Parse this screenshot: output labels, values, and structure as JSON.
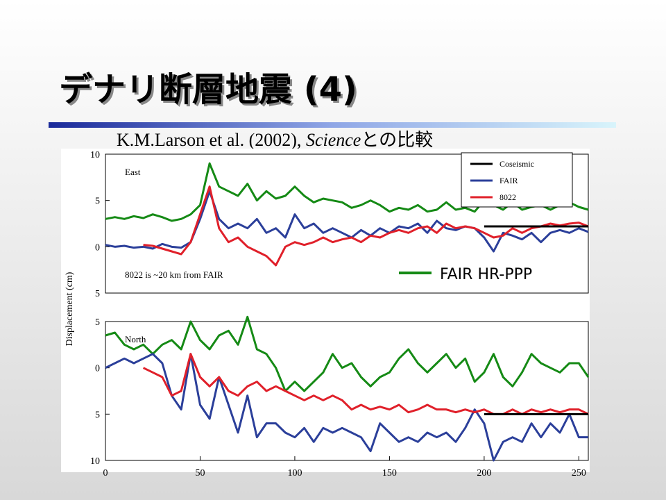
{
  "slide": {
    "title": "デナリ断層地震 (4)",
    "subtitle": [
      "K.M.Larson et al. (2002), ",
      "Science",
      "との比較"
    ],
    "ylabel": "Displacement (cm)"
  },
  "chart_data": [
    {
      "type": "line",
      "label": "East",
      "annotation": "8022 is ~20 km from FAIR",
      "x": [
        0,
        5,
        10,
        15,
        20,
        25,
        30,
        35,
        40,
        45,
        50,
        55,
        60,
        65,
        70,
        75,
        80,
        85,
        90,
        95,
        100,
        105,
        110,
        115,
        120,
        125,
        130,
        135,
        140,
        145,
        150,
        155,
        160,
        165,
        170,
        175,
        180,
        185,
        190,
        195,
        200,
        205,
        210,
        215,
        220,
        225,
        230,
        235,
        240,
        245,
        250,
        255
      ],
      "xlim": [
        0,
        255
      ],
      "ylim": [
        -5,
        10
      ],
      "yticks": [
        10,
        5,
        0,
        {
          "value": -5,
          "label": "5"
        }
      ],
      "series": [
        {
          "name": "FAIR HR-PPP",
          "color": "#158a15",
          "values": [
            3,
            3.2,
            3,
            3.3,
            3.1,
            3.5,
            3.2,
            2.8,
            3,
            3.5,
            4.5,
            9,
            6.5,
            6,
            5.5,
            6.8,
            5,
            6,
            5.2,
            5.5,
            6.5,
            5.5,
            4.8,
            5.2,
            5,
            4.8,
            4.2,
            4.5,
            5,
            4.5,
            3.8,
            4.2,
            4,
            4.5,
            3.8,
            4,
            4.8,
            4,
            4.2,
            3.8,
            5,
            4.5,
            4,
            4.8,
            4,
            4.3,
            4.5,
            4,
            4.5,
            4.8,
            4.3,
            4
          ]
        },
        {
          "name": "FAIR",
          "color": "#2b3f9a",
          "values": [
            0.2,
            0,
            0.1,
            -0.1,
            0,
            -0.2,
            0.3,
            0,
            -0.1,
            0.5,
            3,
            6,
            3,
            2,
            2.5,
            2,
            3,
            1.5,
            2,
            1,
            3.5,
            2,
            2.5,
            1.5,
            2,
            1.5,
            1,
            1.8,
            1.2,
            2,
            1.5,
            2.2,
            2,
            2.5,
            1.5,
            2.8,
            2,
            1.8,
            2.2,
            2,
            1,
            -0.5,
            1.5,
            1.2,
            0.8,
            1.5,
            0.5,
            1.5,
            1.8,
            1.5,
            2,
            1.6
          ]
        },
        {
          "name": "8022",
          "color": "#e0202a",
          "values": [
            null,
            null,
            null,
            null,
            0.2,
            0.1,
            -0.2,
            -0.5,
            -0.8,
            0.5,
            3.5,
            6.5,
            2,
            0.5,
            1,
            0,
            -0.5,
            -1,
            -2,
            0,
            0.5,
            0.2,
            0.5,
            1,
            0.5,
            0.8,
            1,
            0.5,
            1.2,
            1,
            1.5,
            1.8,
            1.5,
            2,
            2.2,
            1.5,
            2.5,
            2,
            2.2,
            2,
            1.5,
            1,
            1.2,
            2,
            1.5,
            2,
            2.2,
            2.5,
            2.3,
            2.5,
            2.6,
            2.2
          ]
        },
        {
          "name": "Coseismic",
          "color": "#000000",
          "values": [
            null,
            null,
            null,
            null,
            null,
            null,
            null,
            null,
            null,
            null,
            null,
            null,
            null,
            null,
            null,
            null,
            null,
            null,
            null,
            null,
            null,
            null,
            null,
            null,
            null,
            null,
            null,
            null,
            null,
            null,
            null,
            null,
            null,
            null,
            null,
            null,
            null,
            null,
            null,
            null,
            2.2,
            2.2,
            2.2,
            2.2,
            2.2,
            2.2,
            2.2,
            2.2,
            2.2,
            2.2,
            2.2,
            2.2
          ]
        }
      ]
    },
    {
      "type": "line",
      "label": "North",
      "x": [
        0,
        5,
        10,
        15,
        20,
        25,
        30,
        35,
        40,
        45,
        50,
        55,
        60,
        65,
        70,
        75,
        80,
        85,
        90,
        95,
        100,
        105,
        110,
        115,
        120,
        125,
        130,
        135,
        140,
        145,
        150,
        155,
        160,
        165,
        170,
        175,
        180,
        185,
        190,
        195,
        200,
        205,
        210,
        215,
        220,
        225,
        230,
        235,
        240,
        245,
        250,
        255
      ],
      "xlim": [
        0,
        255
      ],
      "ylim": [
        -10,
        5
      ],
      "xticks": [
        0,
        50,
        100,
        150,
        200,
        250
      ],
      "yticks": [
        5,
        0,
        {
          "value": -5,
          "label": "5"
        },
        {
          "value": -10,
          "label": "10"
        }
      ],
      "series": [
        {
          "color": "#158a15",
          "values": [
            3.5,
            3.8,
            2.5,
            2,
            2.5,
            1.5,
            2.5,
            3,
            2,
            5,
            3,
            2,
            3.5,
            4,
            2.5,
            5.5,
            2,
            1.5,
            0,
            -2.5,
            -1.5,
            -2.5,
            -1.5,
            -0.5,
            1.5,
            0,
            0.5,
            -1,
            -2,
            -1,
            -0.5,
            1,
            2,
            0.5,
            -0.5,
            0.5,
            1.5,
            0,
            1,
            -1.5,
            -0.5,
            1.5,
            -1,
            -2,
            -0.5,
            1.5,
            0.5,
            0,
            -0.5,
            0.5,
            0.5,
            -1
          ]
        },
        {
          "color": "#2b3f9a",
          "values": [
            0,
            0.5,
            1,
            0.5,
            1,
            1.5,
            0.5,
            -3,
            -4.5,
            1.5,
            -4,
            -5.5,
            -1,
            -4,
            -7,
            -3,
            -7.5,
            -6,
            -6,
            -7,
            -7.5,
            -6.5,
            -8,
            -6.5,
            -7,
            -6.5,
            -7,
            -7.5,
            -9,
            -6,
            -7,
            -8,
            -7.5,
            -8,
            -7,
            -7.5,
            -7,
            -8,
            -6.5,
            -4.5,
            -6,
            -10,
            -8,
            -7.5,
            -8,
            -6,
            -7.5,
            -6,
            -7,
            -5,
            -7.5,
            -7.5
          ]
        },
        {
          "color": "#e0202a",
          "values": [
            null,
            null,
            null,
            null,
            0,
            -0.5,
            -1,
            -3,
            -2.5,
            1.5,
            -1,
            -2,
            -1,
            -2.5,
            -3,
            -2,
            -1.5,
            -2.5,
            -2,
            -2.5,
            -3,
            -3.5,
            -3,
            -3.5,
            -3,
            -3.5,
            -4.5,
            -4,
            -4.5,
            -4.2,
            -4.5,
            -4,
            -4.8,
            -4.5,
            -4,
            -4.5,
            -4.5,
            -4.8,
            -4.5,
            -4.8,
            -4.5,
            -5,
            -5,
            -4.5,
            -5,
            -4.5,
            -4.8,
            -4.5,
            -4.8,
            -4.5,
            -4.5,
            -5
          ]
        },
        {
          "color": "#000000",
          "values": [
            null,
            null,
            null,
            null,
            null,
            null,
            null,
            null,
            null,
            null,
            null,
            null,
            null,
            null,
            null,
            null,
            null,
            null,
            null,
            null,
            null,
            null,
            null,
            null,
            null,
            null,
            null,
            null,
            null,
            null,
            null,
            null,
            null,
            null,
            null,
            null,
            null,
            null,
            null,
            null,
            -5,
            -5,
            -5,
            -5,
            -5,
            -5,
            -5,
            -5,
            -5,
            -5,
            -5,
            -5
          ]
        }
      ]
    }
  ]
}
